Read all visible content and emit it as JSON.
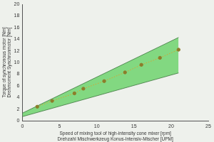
{
  "chart_data": {
    "type": "scatter",
    "x_label": [
      "Speed of mixing tool of high-intensity cone mixer [rpm]",
      "Drehzahl Mischwerkzeug Konus-Intensiv-Mischer [UPM]"
    ],
    "y_label": [
      "Torque of synchronous motor [Nm]",
      "Drehmoment Synchronmotor [Nm]"
    ],
    "xlim": [
      0,
      25
    ],
    "xticks": [
      0,
      5,
      10,
      15,
      20,
      25
    ],
    "ylim": [
      0,
      20
    ],
    "yticks": [
      0,
      2,
      4,
      6,
      8,
      10,
      12,
      14,
      16,
      18,
      20
    ],
    "grid": false,
    "series": [
      {
        "color": "#8c7d2b",
        "marker": "circle",
        "line_style": "dotted",
        "x": [
          2,
          4,
          7,
          8.2,
          11,
          13.8,
          16,
          18.5,
          21
        ],
        "values": [
          2.4,
          3.4,
          4.7,
          5.5,
          6.8,
          8.3,
          9.6,
          10.8,
          12.2
        ]
      }
    ],
    "band": {
      "color": "#6fd46f",
      "x": [
        0,
        21
      ],
      "upper": [
        1.3,
        14.3
      ],
      "lower": [
        0.7,
        8.2
      ]
    }
  }
}
